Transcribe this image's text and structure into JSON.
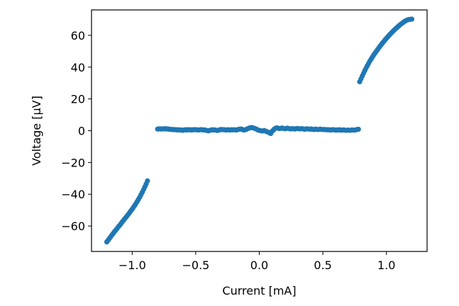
{
  "chart_data": {
    "type": "scatter",
    "title": "",
    "xlabel": "Current [mA]",
    "ylabel": "Voltage [µV]",
    "xlim": [
      -1.32,
      1.32
    ],
    "ylim": [
      -76,
      76
    ],
    "xticks": [
      -1.0,
      -0.5,
      0.0,
      0.5,
      1.0
    ],
    "xtick_labels": [
      "−1.0",
      "−0.5",
      "0.0",
      "0.5",
      "1.0"
    ],
    "yticks": [
      -60,
      -40,
      -20,
      0,
      20,
      40,
      60
    ],
    "ytick_labels": [
      "−60",
      "−40",
      "−20",
      "0",
      "20",
      "40",
      "60"
    ],
    "grid": false,
    "marker_color": "#1f77b4",
    "series": [
      {
        "points": [
          [
            -1.2,
            -70.0
          ],
          [
            -1.19,
            -69.0
          ],
          [
            -1.18,
            -67.9
          ],
          [
            -1.17,
            -66.8
          ],
          [
            -1.16,
            -65.7
          ],
          [
            -1.15,
            -64.7
          ],
          [
            -1.14,
            -63.6
          ],
          [
            -1.13,
            -62.7
          ],
          [
            -1.12,
            -61.7
          ],
          [
            -1.11,
            -60.6
          ],
          [
            -1.1,
            -59.7
          ],
          [
            -1.09,
            -58.7
          ],
          [
            -1.08,
            -57.6
          ],
          [
            -1.07,
            -56.6
          ],
          [
            -1.06,
            -55.6
          ],
          [
            -1.05,
            -54.6
          ],
          [
            -1.04,
            -53.6
          ],
          [
            -1.03,
            -52.6
          ],
          [
            -1.02,
            -51.5
          ],
          [
            -1.01,
            -50.4
          ],
          [
            -1.0,
            -49.4
          ],
          [
            -0.99,
            -48.2
          ],
          [
            -0.98,
            -47.0
          ],
          [
            -0.97,
            -45.8
          ],
          [
            -0.96,
            -44.5
          ],
          [
            -0.95,
            -43.1
          ],
          [
            -0.94,
            -41.7
          ],
          [
            -0.93,
            -40.2
          ],
          [
            -0.92,
            -38.6
          ],
          [
            -0.91,
            -37.0
          ],
          [
            -0.9,
            -35.3
          ],
          [
            -0.89,
            -33.5
          ],
          [
            -0.88,
            -31.6
          ],
          [
            -0.8,
            1.0
          ],
          [
            -0.79,
            1.1
          ],
          [
            -0.78,
            1.2
          ],
          [
            -0.77,
            1.0
          ],
          [
            -0.76,
            1.2
          ],
          [
            -0.75,
            1.1
          ],
          [
            -0.74,
            1.3
          ],
          [
            -0.73,
            1.0
          ],
          [
            -0.72,
            1.2
          ],
          [
            -0.71,
            0.9
          ],
          [
            -0.7,
            0.9
          ],
          [
            -0.69,
            0.7
          ],
          [
            -0.68,
            0.8
          ],
          [
            -0.67,
            0.6
          ],
          [
            -0.66,
            0.7
          ],
          [
            -0.65,
            0.5
          ],
          [
            -0.64,
            0.6
          ],
          [
            -0.63,
            0.4
          ],
          [
            -0.62,
            0.5
          ],
          [
            -0.61,
            0.4
          ],
          [
            -0.6,
            0.2
          ],
          [
            -0.59,
            0.5
          ],
          [
            -0.58,
            0.6
          ],
          [
            -0.57,
            0.4
          ],
          [
            -0.56,
            0.7
          ],
          [
            -0.55,
            0.5
          ],
          [
            -0.54,
            0.6
          ],
          [
            -0.53,
            0.4
          ],
          [
            -0.52,
            0.6
          ],
          [
            -0.51,
            0.7
          ],
          [
            -0.5,
            0.5
          ],
          [
            -0.49,
            0.6
          ],
          [
            -0.48,
            0.4
          ],
          [
            -0.47,
            0.5
          ],
          [
            -0.46,
            0.7
          ],
          [
            -0.45,
            0.6
          ],
          [
            -0.44,
            0.4
          ],
          [
            -0.43,
            0.5
          ],
          [
            -0.42,
            0.3
          ],
          [
            -0.41,
            0.0
          ],
          [
            -0.4,
            -0.1
          ],
          [
            -0.39,
            0.2
          ],
          [
            -0.38,
            0.4
          ],
          [
            -0.37,
            0.6
          ],
          [
            -0.36,
            0.4
          ],
          [
            -0.35,
            0.5
          ],
          [
            -0.34,
            0.3
          ],
          [
            -0.33,
            0.1
          ],
          [
            -0.32,
            0.3
          ],
          [
            -0.31,
            0.6
          ],
          [
            -0.3,
            0.8
          ],
          [
            -0.29,
            0.6
          ],
          [
            -0.28,
            0.7
          ],
          [
            -0.27,
            0.5
          ],
          [
            -0.26,
            0.4
          ],
          [
            -0.25,
            0.6
          ],
          [
            -0.24,
            0.5
          ],
          [
            -0.23,
            0.4
          ],
          [
            -0.22,
            0.6
          ],
          [
            -0.21,
            0.5
          ],
          [
            -0.2,
            0.6
          ],
          [
            -0.19,
            0.5
          ],
          [
            -0.18,
            0.4
          ],
          [
            -0.17,
            0.7
          ],
          [
            -0.16,
            0.9
          ],
          [
            -0.15,
            1.0
          ],
          [
            -0.14,
            1.0
          ],
          [
            -0.13,
            0.6
          ],
          [
            -0.12,
            0.4
          ],
          [
            -0.11,
            0.6
          ],
          [
            -0.1,
            0.9
          ],
          [
            -0.09,
            1.3
          ],
          [
            -0.08,
            1.6
          ],
          [
            -0.07,
            1.8
          ],
          [
            -0.06,
            2.0
          ],
          [
            -0.05,
            1.8
          ],
          [
            -0.04,
            1.5
          ],
          [
            -0.03,
            1.2
          ],
          [
            -0.02,
            0.9
          ],
          [
            -0.01,
            0.4
          ],
          [
            0.0,
            0.2
          ],
          [
            0.01,
            0.0
          ],
          [
            0.02,
            -0.2
          ],
          [
            0.03,
            -0.1
          ],
          [
            0.04,
            0.1
          ],
          [
            0.05,
            -0.3
          ],
          [
            0.06,
            -0.6
          ],
          [
            0.07,
            -1.0
          ],
          [
            0.08,
            -1.4
          ],
          [
            0.09,
            -1.8
          ],
          [
            0.1,
            -0.4
          ],
          [
            0.11,
            0.3
          ],
          [
            0.12,
            1.2
          ],
          [
            0.13,
            1.6
          ],
          [
            0.14,
            1.8
          ],
          [
            0.15,
            1.5
          ],
          [
            0.16,
            1.3
          ],
          [
            0.17,
            1.5
          ],
          [
            0.18,
            1.7
          ],
          [
            0.19,
            1.4
          ],
          [
            0.2,
            1.2
          ],
          [
            0.21,
            1.3
          ],
          [
            0.22,
            1.6
          ],
          [
            0.23,
            1.4
          ],
          [
            0.24,
            1.2
          ],
          [
            0.25,
            1.1
          ],
          [
            0.26,
            1.3
          ],
          [
            0.27,
            1.2
          ],
          [
            0.28,
            1.0
          ],
          [
            0.29,
            1.3
          ],
          [
            0.3,
            1.4
          ],
          [
            0.31,
            1.2
          ],
          [
            0.32,
            1.1
          ],
          [
            0.33,
            1.3
          ],
          [
            0.34,
            1.2
          ],
          [
            0.35,
            1.0
          ],
          [
            0.36,
            0.9
          ],
          [
            0.37,
            1.1
          ],
          [
            0.38,
            1.2
          ],
          [
            0.39,
            1.0
          ],
          [
            0.4,
            0.9
          ],
          [
            0.41,
            1.1
          ],
          [
            0.42,
            0.8
          ],
          [
            0.43,
            0.7
          ],
          [
            0.44,
            1.0
          ],
          [
            0.45,
            0.9
          ],
          [
            0.46,
            0.7
          ],
          [
            0.47,
            0.8
          ],
          [
            0.48,
            1.0
          ],
          [
            0.49,
            0.8
          ],
          [
            0.5,
            0.7
          ],
          [
            0.51,
            0.8
          ],
          [
            0.52,
            0.6
          ],
          [
            0.53,
            0.7
          ],
          [
            0.54,
            0.5
          ],
          [
            0.55,
            0.6
          ],
          [
            0.56,
            0.4
          ],
          [
            0.57,
            0.5
          ],
          [
            0.58,
            0.7
          ],
          [
            0.59,
            0.5
          ],
          [
            0.6,
            0.3
          ],
          [
            0.61,
            0.5
          ],
          [
            0.62,
            0.4
          ],
          [
            0.63,
            0.6
          ],
          [
            0.64,
            0.4
          ],
          [
            0.65,
            0.3
          ],
          [
            0.66,
            0.5
          ],
          [
            0.67,
            0.4
          ],
          [
            0.68,
            0.2
          ],
          [
            0.69,
            0.3
          ],
          [
            0.7,
            0.4
          ],
          [
            0.71,
            0.2
          ],
          [
            0.72,
            0.3
          ],
          [
            0.73,
            0.5
          ],
          [
            0.74,
            0.4
          ],
          [
            0.75,
            0.3
          ],
          [
            0.76,
            0.5
          ],
          [
            0.77,
            0.8
          ],
          [
            0.78,
            0.9
          ],
          [
            0.79,
            30.8
          ],
          [
            0.8,
            32.6
          ],
          [
            0.81,
            34.4
          ],
          [
            0.82,
            36.1
          ],
          [
            0.83,
            37.8
          ],
          [
            0.84,
            39.4
          ],
          [
            0.85,
            40.9
          ],
          [
            0.86,
            42.4
          ],
          [
            0.87,
            43.8
          ],
          [
            0.88,
            45.1
          ],
          [
            0.89,
            46.4
          ],
          [
            0.9,
            47.6
          ],
          [
            0.91,
            48.8
          ],
          [
            0.92,
            49.9
          ],
          [
            0.93,
            51.0
          ],
          [
            0.94,
            52.1
          ],
          [
            0.95,
            53.2
          ],
          [
            0.96,
            54.2
          ],
          [
            0.97,
            55.2
          ],
          [
            0.98,
            56.2
          ],
          [
            0.99,
            57.2
          ],
          [
            1.0,
            58.1
          ],
          [
            1.01,
            59.0
          ],
          [
            1.02,
            59.9
          ],
          [
            1.03,
            60.8
          ],
          [
            1.04,
            61.6
          ],
          [
            1.05,
            62.4
          ],
          [
            1.06,
            63.2
          ],
          [
            1.07,
            64.0
          ],
          [
            1.08,
            64.7
          ],
          [
            1.09,
            65.4
          ],
          [
            1.1,
            66.1
          ],
          [
            1.11,
            66.8
          ],
          [
            1.12,
            67.4
          ],
          [
            1.13,
            68.0
          ],
          [
            1.14,
            68.6
          ],
          [
            1.15,
            69.1
          ],
          [
            1.16,
            69.5
          ],
          [
            1.17,
            69.8
          ],
          [
            1.18,
            70.0
          ],
          [
            1.19,
            70.1
          ],
          [
            1.2,
            70.2
          ]
        ]
      }
    ]
  }
}
